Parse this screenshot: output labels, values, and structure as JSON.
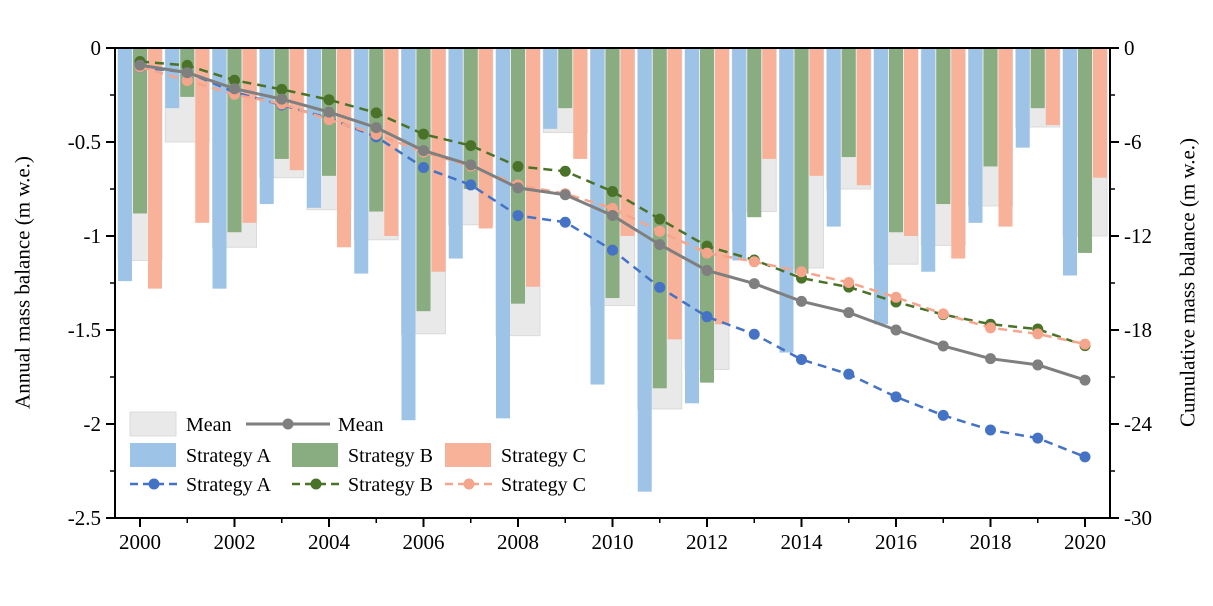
{
  "chart_data": {
    "type": "bar+line",
    "title": "",
    "x": {
      "years": [
        2000,
        2001,
        2002,
        2003,
        2004,
        2005,
        2006,
        2007,
        2008,
        2009,
        2010,
        2011,
        2012,
        2013,
        2014,
        2015,
        2016,
        2017,
        2018,
        2019,
        2020
      ],
      "labeled_ticks": [
        2000,
        2002,
        2004,
        2006,
        2008,
        2010,
        2012,
        2014,
        2016,
        2018,
        2020
      ]
    },
    "left_axis": {
      "label": "Annual mass balance (m w.e.)",
      "range": [
        0,
        -2.5
      ],
      "major_ticks": [
        0,
        -0.5,
        -1,
        -1.5,
        -2,
        -2.5
      ],
      "tick_labels": [
        "0",
        "-0.5",
        "-1",
        "-1.5",
        "-2",
        "-2.5"
      ],
      "minor_ticks": [
        -0.25,
        -0.75,
        -1.25,
        -1.75,
        -2.25
      ]
    },
    "right_axis": {
      "label": "Cumulative mass balance (m w.e.)",
      "range": [
        0,
        -30
      ],
      "major_ticks": [
        0,
        -6,
        -12,
        -18,
        -24,
        -30
      ],
      "tick_labels": [
        "0",
        "-6",
        "-12",
        "-18",
        "-24",
        "-30"
      ],
      "minor_ticks": [
        -3,
        -9,
        -15,
        -21,
        -27
      ]
    },
    "bars_annual_m_we": {
      "series": [
        {
          "id": "mean",
          "name": "Mean",
          "values": [
            -1.13,
            -0.5,
            -1.06,
            -0.69,
            -0.86,
            -1.02,
            -1.52,
            -0.94,
            -1.53,
            -0.45,
            -1.37,
            -1.92,
            -1.71,
            -0.87,
            -1.17,
            -0.75,
            -1.15,
            -1.05,
            -0.84,
            -0.42,
            -1.0
          ]
        },
        {
          "id": "a",
          "name": "Strategy A",
          "values": [
            -1.24,
            -0.32,
            -1.28,
            -0.83,
            -0.85,
            -1.2,
            -1.98,
            -1.12,
            -1.97,
            -0.43,
            -1.79,
            -2.36,
            -1.89,
            -1.13,
            -1.62,
            -0.95,
            -1.47,
            -1.19,
            -0.93,
            -0.53,
            -1.21
          ]
        },
        {
          "id": "b",
          "name": "Strategy B",
          "values": [
            -0.88,
            -0.26,
            -0.98,
            -0.59,
            -0.68,
            -0.87,
            -1.4,
            -0.75,
            -1.36,
            -0.32,
            -1.33,
            -1.81,
            -1.78,
            -0.9,
            -1.2,
            -0.58,
            -0.98,
            -0.83,
            -0.63,
            -0.32,
            -1.09
          ]
        },
        {
          "id": "c",
          "name": "Strategy C",
          "values": [
            -1.28,
            -0.93,
            -0.93,
            -0.65,
            -1.06,
            -1.0,
            -1.19,
            -0.96,
            -1.27,
            -0.59,
            -1.0,
            -1.55,
            -1.47,
            -0.59,
            -0.68,
            -0.73,
            -1.0,
            -1.12,
            -0.95,
            -0.41,
            -0.69
          ]
        }
      ]
    },
    "lines_cumulative_m_we": {
      "series": [
        {
          "id": "a",
          "name": "Strategy A",
          "values": [
            -1.23,
            -1.55,
            -2.82,
            -3.64,
            -4.48,
            -5.67,
            -7.63,
            -8.74,
            -10.7,
            -11.12,
            -12.9,
            -15.28,
            -17.15,
            -18.27,
            -19.88,
            -20.82,
            -22.27,
            -23.45,
            -24.38,
            -24.9,
            -26.1
          ]
        },
        {
          "id": "b",
          "name": "Strategy B",
          "values": [
            -0.86,
            -1.11,
            -2.06,
            -2.64,
            -3.3,
            -4.14,
            -5.5,
            -6.23,
            -7.56,
            -7.87,
            -9.16,
            -10.92,
            -12.65,
            -13.53,
            -14.69,
            -15.26,
            -16.21,
            -17.02,
            -17.63,
            -17.94,
            -19.0
          ]
        },
        {
          "id": "c",
          "name": "Strategy C",
          "values": [
            -1.21,
            -2.08,
            -2.96,
            -3.57,
            -4.57,
            -5.51,
            -6.64,
            -7.54,
            -8.74,
            -9.3,
            -10.24,
            -11.7,
            -13.09,
            -13.64,
            -14.28,
            -14.97,
            -15.91,
            -16.97,
            -17.86,
            -18.25,
            -18.9
          ]
        },
        {
          "id": "mean",
          "name": "Mean",
          "values": [
            -1.09,
            -1.57,
            -2.6,
            -3.26,
            -4.09,
            -5.08,
            -6.55,
            -7.46,
            -8.93,
            -9.37,
            -10.69,
            -12.55,
            -14.2,
            -15.04,
            -16.17,
            -16.89,
            -18.0,
            -19.02,
            -19.83,
            -20.23,
            -21.2
          ]
        }
      ]
    },
    "legend": {
      "rows": [
        [
          {
            "type": "bar",
            "series": "mean",
            "label": "Mean"
          },
          {
            "type": "line",
            "series": "mean",
            "label": "Mean"
          }
        ],
        [
          {
            "type": "bar",
            "series": "a",
            "label": "Strategy A"
          },
          {
            "type": "bar",
            "series": "b",
            "label": "Strategy B"
          },
          {
            "type": "bar",
            "series": "c",
            "label": "Strategy C"
          }
        ],
        [
          {
            "type": "line",
            "series": "a",
            "label": "Strategy A"
          },
          {
            "type": "line",
            "series": "b",
            "label": "Strategy B"
          },
          {
            "type": "line",
            "series": "c",
            "label": "Strategy C"
          }
        ]
      ],
      "position": "inside lower-left"
    },
    "colors": {
      "bar_mean": "#E9E9E9",
      "bar_mean_border": "#DBDBDB",
      "bar_a": "#9DC3E6",
      "bar_b": "#89AC80",
      "bar_c": "#F9B29A",
      "line_mean": "#7F7F7F",
      "line_a": "#4472C4",
      "line_b": "#4A7228",
      "line_c": "#F5A58C",
      "axis": "#000000"
    },
    "grid": false
  }
}
